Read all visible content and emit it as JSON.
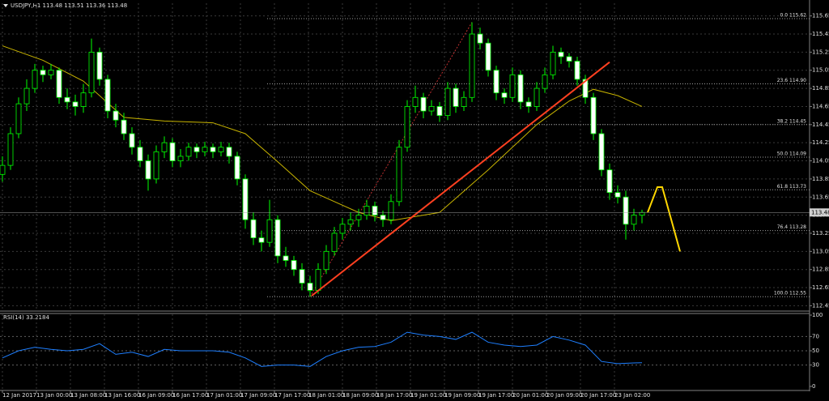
{
  "chart_data": [
    {
      "type": "candlestick",
      "title": "USDJPY,H1  113.48 113.51 113.36 113.48",
      "ylim": [
        112.4,
        115.79
      ],
      "yticks": [
        112.45,
        112.65,
        112.85,
        113.05,
        113.25,
        113.45,
        113.65,
        113.85,
        114.05,
        114.25,
        114.45,
        114.65,
        114.85,
        115.05,
        115.25,
        115.45,
        115.65
      ],
      "xlim": [
        -0.3,
        99.7
      ],
      "xticks": [
        {
          "value": 0,
          "label": "12 Jan 2017"
        },
        {
          "value": 4.2,
          "label": "13 Jan 00:00"
        },
        {
          "value": 8.4,
          "label": "13 Jan 08:00"
        },
        {
          "value": 12.6,
          "label": "13 Jan 16:00"
        },
        {
          "value": 16.8,
          "label": "16 Jan 09:00"
        },
        {
          "value": 21,
          "label": "16 Jan 17:00"
        },
        {
          "value": 25.2,
          "label": "17 Jan 01:00"
        },
        {
          "value": 29.4,
          "label": "17 Jan 09:00"
        },
        {
          "value": 33.6,
          "label": "17 Jan 17:00"
        },
        {
          "value": 37.8,
          "label": "18 Jan 01:00"
        },
        {
          "value": 42,
          "label": "18 Jan 09:00"
        },
        {
          "value": 46.2,
          "label": "18 Jan 17:00"
        },
        {
          "value": 50.4,
          "label": "19 Jan 01:00"
        },
        {
          "value": 54.6,
          "label": "19 Jan 09:00"
        },
        {
          "value": 58.8,
          "label": "19 Jan 17:00"
        },
        {
          "value": 63,
          "label": "20 Jan 01:00"
        },
        {
          "value": 67.2,
          "label": "20 Jan 09:00"
        },
        {
          "value": 71.4,
          "label": "20 Jan 17:00"
        },
        {
          "value": 75.6,
          "label": "23 Jan 02:00"
        }
      ],
      "grid": true,
      "up_color": "#00ff00",
      "down_color": "#ffffff",
      "open": [
        113.9,
        114.0,
        114.35,
        114.68,
        114.85,
        115.05,
        115.0,
        115.05,
        114.75,
        114.7,
        114.65,
        114.8,
        115.25,
        114.95,
        114.6,
        114.5,
        114.35,
        114.2,
        114.05,
        113.85,
        114.15,
        114.25,
        114.05,
        114.1,
        114.2,
        114.15,
        114.2,
        114.15,
        114.2,
        114.1,
        113.85,
        113.4,
        113.2,
        113.15,
        113.4,
        113.0,
        112.95,
        112.85,
        112.7,
        112.62,
        112.85,
        113.05,
        113.25,
        113.35,
        113.4,
        113.45,
        113.55,
        113.45,
        113.4,
        113.6,
        114.2,
        114.65,
        114.75,
        114.6,
        114.65,
        114.55,
        114.85,
        114.65,
        114.75,
        115.45,
        115.35,
        115.05,
        114.8,
        114.75,
        115.0,
        114.7,
        114.65,
        114.85,
        115.0,
        115.25,
        115.2,
        115.15,
        114.95,
        114.75,
        114.35,
        113.95,
        113.7,
        113.65,
        113.35,
        113.45
      ],
      "high": [
        114.1,
        114.42,
        114.75,
        114.95,
        115.12,
        115.1,
        115.12,
        115.08,
        114.85,
        114.78,
        114.9,
        115.4,
        115.3,
        115.0,
        114.68,
        114.58,
        114.42,
        114.28,
        114.12,
        114.22,
        114.32,
        114.3,
        114.18,
        114.25,
        114.24,
        114.26,
        114.24,
        114.26,
        114.25,
        114.15,
        113.9,
        113.48,
        113.28,
        113.62,
        113.45,
        113.1,
        113.0,
        112.92,
        112.78,
        112.92,
        113.12,
        113.32,
        113.42,
        113.48,
        113.52,
        113.62,
        113.6,
        113.5,
        113.68,
        114.28,
        114.72,
        114.88,
        114.8,
        114.72,
        114.7,
        114.92,
        114.9,
        114.82,
        115.58,
        115.52,
        115.4,
        115.1,
        114.85,
        115.08,
        115.05,
        114.75,
        114.92,
        115.08,
        115.32,
        115.3,
        115.24,
        115.2,
        115.0,
        114.8,
        114.4,
        114.02,
        113.78,
        113.72,
        113.52,
        113.51
      ],
      "low": [
        113.82,
        113.95,
        114.3,
        114.6,
        114.8,
        114.92,
        114.95,
        114.68,
        114.62,
        114.55,
        114.58,
        114.75,
        114.88,
        114.52,
        114.42,
        114.28,
        114.12,
        113.98,
        113.72,
        113.8,
        114.08,
        113.98,
        113.98,
        114.05,
        114.08,
        114.1,
        114.08,
        114.1,
        114.02,
        113.78,
        113.3,
        113.12,
        113.05,
        113.1,
        112.92,
        112.88,
        112.78,
        112.62,
        112.55,
        112.58,
        112.8,
        113.0,
        113.18,
        113.28,
        113.32,
        113.4,
        113.38,
        113.32,
        113.35,
        113.55,
        114.15,
        114.58,
        114.52,
        114.55,
        114.48,
        114.5,
        114.58,
        114.6,
        114.7,
        115.28,
        114.98,
        114.72,
        114.68,
        114.7,
        114.62,
        114.58,
        114.6,
        114.8,
        114.95,
        115.12,
        115.08,
        114.88,
        114.68,
        114.28,
        113.88,
        113.62,
        113.58,
        113.18,
        113.28,
        113.36
      ],
      "close": [
        114.0,
        114.35,
        114.68,
        114.85,
        115.05,
        115.0,
        115.05,
        114.75,
        114.7,
        114.65,
        114.8,
        115.25,
        114.95,
        114.6,
        114.5,
        114.35,
        114.2,
        114.05,
        113.85,
        114.15,
        114.25,
        114.05,
        114.1,
        114.2,
        114.15,
        114.2,
        114.15,
        114.2,
        114.1,
        113.85,
        113.4,
        113.2,
        113.15,
        113.4,
        113.0,
        112.95,
        112.85,
        112.7,
        112.62,
        112.85,
        113.05,
        113.25,
        113.35,
        113.4,
        113.45,
        113.55,
        113.45,
        113.4,
        113.6,
        114.2,
        114.65,
        114.75,
        114.6,
        114.65,
        114.55,
        114.85,
        114.65,
        114.75,
        115.45,
        115.35,
        115.05,
        114.8,
        114.75,
        115.0,
        114.7,
        114.65,
        114.85,
        115.0,
        115.25,
        115.2,
        115.15,
        114.95,
        114.75,
        114.35,
        113.95,
        113.7,
        113.65,
        113.35,
        113.45,
        113.48
      ],
      "moving_average": {
        "color": "#c8b400",
        "x": [
          0,
          5,
          10,
          15,
          20,
          26,
          30,
          34,
          38,
          44,
          48,
          54,
          60,
          66,
          70,
          73,
          76,
          79
        ],
        "values": [
          115.32,
          115.16,
          114.93,
          114.53,
          114.49,
          114.47,
          114.35,
          114.04,
          113.72,
          113.48,
          113.39,
          113.48,
          113.95,
          114.45,
          114.71,
          114.84,
          114.77,
          114.65
        ]
      },
      "trend_line": {
        "color": "#ff4020",
        "x": [
          38.2,
          75
        ],
        "values": [
          112.56,
          115.14
        ]
      },
      "projection": {
        "color": "#ffd700",
        "x": [
          79.7,
          80.9,
          81.5,
          83.7
        ],
        "values": [
          113.48,
          113.76,
          113.76,
          113.05
        ]
      },
      "fibonacci": {
        "color": "#a0a0a0",
        "anchor_color": "#c03030",
        "levels": [
          {
            "value": 115.62,
            "label": "0.0 115.62"
          },
          {
            "value": 114.9,
            "label": "23.6 114.90"
          },
          {
            "value": 114.45,
            "label": "38.2 114.45"
          },
          {
            "value": 114.09,
            "label": "50.0 114.09"
          },
          {
            "value": 113.73,
            "label": "61.8 113.73"
          },
          {
            "value": 113.28,
            "label": "76.4 113.28"
          },
          {
            "value": 112.55,
            "label": "100.0 112.55"
          }
        ]
      },
      "last_price": 113.48
    },
    {
      "type": "line",
      "title": "RSI(14) 33.2184",
      "ylim": [
        0,
        100
      ],
      "yticks": [
        0,
        30,
        50,
        70,
        100
      ],
      "grid_levels": [
        30,
        50,
        70
      ],
      "series": [
        {
          "name": "RSI(14)",
          "color": "#1e7fff",
          "x": [
            0,
            2,
            4,
            6,
            8,
            10,
            12,
            14,
            16,
            18,
            20,
            22,
            24,
            26,
            28,
            30,
            32,
            34,
            36,
            38,
            40,
            42,
            44,
            46,
            48,
            50,
            52,
            54,
            56,
            58,
            60,
            62,
            64,
            66,
            68,
            70,
            72,
            74,
            76,
            78,
            79
          ],
          "values": [
            40,
            50,
            55,
            52,
            50,
            52,
            60,
            45,
            48,
            42,
            52,
            50,
            50,
            50,
            48,
            40,
            28,
            30,
            30,
            28,
            42,
            50,
            55,
            56,
            62,
            76,
            72,
            70,
            66,
            76,
            62,
            58,
            56,
            58,
            70,
            65,
            58,
            35,
            32,
            33,
            33.2
          ]
        }
      ]
    }
  ]
}
